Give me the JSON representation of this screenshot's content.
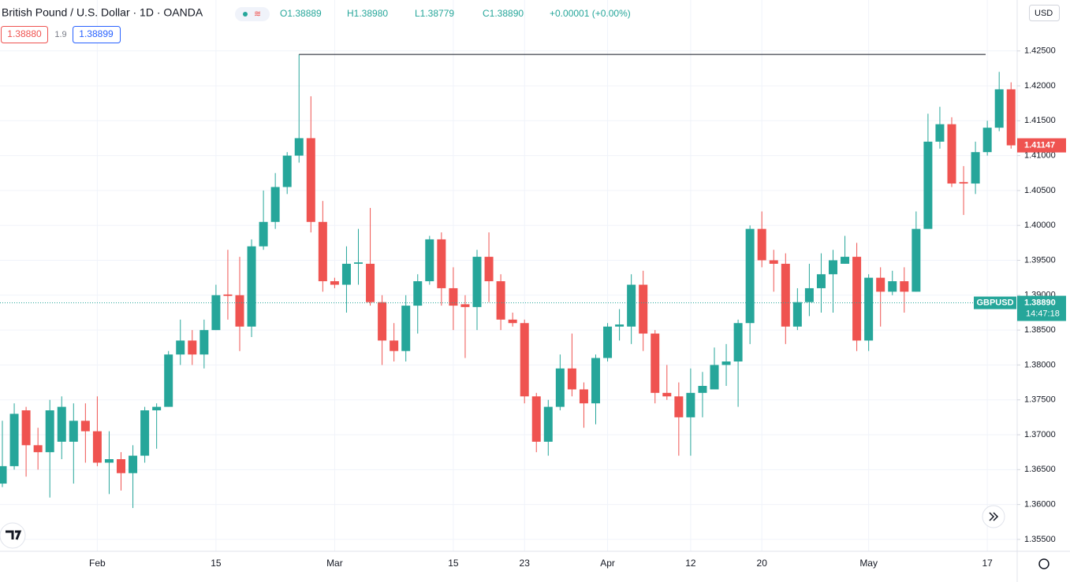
{
  "header": {
    "title": "British Pound / U.S. Dollar · 1D · OANDA",
    "ohlc": [
      "O1.38889",
      "H1.38980",
      "L1.38779",
      "C1.38890",
      "+0.00001 (+0.00%)"
    ],
    "sell": "1.38880",
    "spread": "1.9",
    "buy": "1.38899",
    "currency": "USD"
  },
  "chart_data": {
    "type": "candlestick",
    "categories": [
      null,
      null,
      null,
      null,
      null,
      null,
      null,
      null,
      "Feb",
      null,
      null,
      null,
      null,
      null,
      null,
      null,
      null,
      null,
      "15",
      null,
      null,
      null,
      null,
      null,
      null,
      null,
      null,
      null,
      "Mar",
      null,
      null,
      null,
      null,
      null,
      null,
      null,
      null,
      null,
      "15",
      null,
      null,
      null,
      null,
      null,
      "23",
      null,
      null,
      null,
      null,
      null,
      null,
      "Apr",
      null,
      null,
      null,
      null,
      null,
      null,
      "12",
      null,
      null,
      null,
      null,
      null,
      "20",
      null,
      null,
      null,
      null,
      null,
      null,
      null,
      null,
      "May",
      null,
      null,
      null,
      null,
      null,
      null,
      null,
      null,
      null,
      "17",
      null,
      null
    ],
    "open": [
      1.363,
      1.3655,
      1.3735,
      1.3685,
      1.3675,
      1.369,
      1.369,
      1.372,
      1.3705,
      1.366,
      1.3665,
      1.3645,
      1.367,
      1.3735,
      1.374,
      1.3815,
      1.3835,
      1.3815,
      1.385,
      1.3901,
      1.39,
      1.3855,
      1.397,
      1.4005,
      1.4055,
      1.41,
      1.4125,
      1.4005,
      1.392,
      1.3915,
      1.3945,
      1.3945,
      1.389,
      1.3835,
      1.382,
      1.3885,
      1.392,
      1.398,
      1.391,
      1.3887,
      1.3883,
      1.3955,
      1.392,
      1.3865,
      1.386,
      1.3755,
      1.369,
      1.374,
      1.3795,
      1.3765,
      1.3745,
      1.381,
      1.3855,
      1.3855,
      1.3915,
      1.3845,
      1.376,
      1.3755,
      1.3725,
      1.376,
      1.3765,
      1.38,
      1.3805,
      1.386,
      1.3995,
      1.395,
      1.3945,
      1.3855,
      1.389,
      1.391,
      1.393,
      1.3945,
      1.3955,
      1.3835,
      1.3925,
      1.3905,
      1.392,
      1.3905,
      1.3995,
      1.412,
      1.4145,
      1.4062,
      1.406,
      1.4105,
      1.414,
      1.4195
    ],
    "high": [
      1.372,
      1.3745,
      1.374,
      1.371,
      1.375,
      1.3755,
      1.3745,
      1.3745,
      1.3755,
      1.3705,
      1.3675,
      1.3685,
      1.374,
      1.3745,
      1.382,
      1.3865,
      1.385,
      1.3865,
      1.3915,
      1.3965,
      1.3955,
      1.398,
      1.405,
      1.4075,
      1.4105,
      1.4245,
      1.4185,
      1.4035,
      1.3925,
      1.397,
      1.3995,
      1.4025,
      1.39,
      1.386,
      1.39,
      1.393,
      1.3985,
      1.399,
      1.394,
      1.39,
      1.3965,
      1.399,
      1.393,
      1.3875,
      1.3865,
      1.376,
      1.375,
      1.3815,
      1.3845,
      1.3775,
      1.3815,
      1.386,
      1.388,
      1.393,
      1.3935,
      1.385,
      1.38,
      1.3775,
      1.3795,
      1.379,
      1.3825,
      1.383,
      1.3865,
      1.4,
      1.402,
      1.3965,
      1.396,
      1.391,
      1.3945,
      1.396,
      1.3965,
      1.3985,
      1.3975,
      1.393,
      1.394,
      1.3935,
      1.394,
      1.402,
      1.416,
      1.417,
      1.4155,
      1.4085,
      1.412,
      1.415,
      1.422,
      1.4205
    ],
    "low": [
      1.3625,
      1.365,
      1.364,
      1.365,
      1.361,
      1.3665,
      1.363,
      1.366,
      1.3655,
      1.3615,
      1.362,
      1.3595,
      1.366,
      1.368,
      1.374,
      1.38,
      1.38,
      1.3795,
      1.385,
      1.3865,
      1.382,
      1.384,
      1.3965,
      1.3995,
      1.4045,
      1.409,
      1.399,
      1.3905,
      1.391,
      1.3875,
      1.3915,
      1.3885,
      1.38,
      1.3805,
      1.3805,
      1.3845,
      1.3915,
      1.3885,
      1.385,
      1.381,
      1.385,
      1.389,
      1.385,
      1.3855,
      1.3745,
      1.3675,
      1.367,
      1.3735,
      1.3755,
      1.371,
      1.3715,
      1.3805,
      1.3835,
      1.383,
      1.382,
      1.3745,
      1.375,
      1.367,
      1.367,
      1.3725,
      1.377,
      1.377,
      1.374,
      1.383,
      1.394,
      1.3905,
      1.383,
      1.385,
      1.387,
      1.3875,
      1.3875,
      1.3945,
      1.382,
      1.382,
      1.3855,
      1.39,
      1.3875,
      1.3905,
      1.3995,
      1.411,
      1.4055,
      1.4015,
      1.4045,
      1.41,
      1.4135,
      1.411
    ],
    "close": [
      1.3655,
      1.373,
      1.3685,
      1.3675,
      1.3735,
      1.374,
      1.372,
      1.3705,
      1.366,
      1.3665,
      1.3645,
      1.367,
      1.3735,
      1.374,
      1.3815,
      1.3835,
      1.3815,
      1.385,
      1.39,
      1.3899,
      1.3855,
      1.397,
      1.4005,
      1.4055,
      1.41,
      1.4125,
      1.4005,
      1.392,
      1.3915,
      1.3945,
      1.3947,
      1.389,
      1.3835,
      1.382,
      1.3885,
      1.392,
      1.398,
      1.391,
      1.3885,
      1.3883,
      1.3955,
      1.392,
      1.3865,
      1.386,
      1.3755,
      1.369,
      1.374,
      1.3795,
      1.3765,
      1.3745,
      1.381,
      1.3855,
      1.3858,
      1.3915,
      1.3845,
      1.376,
      1.3755,
      1.3725,
      1.376,
      1.377,
      1.38,
      1.3805,
      1.386,
      1.3995,
      1.395,
      1.3945,
      1.3855,
      1.389,
      1.391,
      1.393,
      1.395,
      1.3955,
      1.3835,
      1.3925,
      1.3905,
      1.392,
      1.3905,
      1.3995,
      1.412,
      1.4145,
      1.406,
      1.406,
      1.4105,
      1.414,
      1.4195,
      1.41147
    ],
    "up_color": "#26a69a",
    "down_color": "#ef5350",
    "ylim": [
      1.3533,
      1.4323
    ],
    "yticks": [
      {
        "value": 1.355,
        "label": "1.35500"
      },
      {
        "value": 1.36,
        "label": "1.36000"
      },
      {
        "value": 1.365,
        "label": "1.36500"
      },
      {
        "value": 1.37,
        "label": "1.37000"
      },
      {
        "value": 1.375,
        "label": "1.37500"
      },
      {
        "value": 1.38,
        "label": "1.38000"
      },
      {
        "value": 1.385,
        "label": "1.38500"
      },
      {
        "value": 1.39,
        "label": "1.39000"
      },
      {
        "value": 1.395,
        "label": "1.39500"
      },
      {
        "value": 1.4,
        "label": "1.40000"
      },
      {
        "value": 1.405,
        "label": "1.40500"
      },
      {
        "value": 1.41,
        "label": "1.41000"
      },
      {
        "value": 1.415,
        "label": "1.41500"
      },
      {
        "value": 1.42,
        "label": "1.42000"
      },
      {
        "value": 1.425,
        "label": "1.42500"
      }
    ],
    "grid": true,
    "horizontal_line": 1.4245,
    "last_price": 1.41147,
    "crosshair": {
      "value": 1.3889,
      "label": "1.38890",
      "symbol": "GBPUSD",
      "countdown": "14:47:18"
    }
  }
}
